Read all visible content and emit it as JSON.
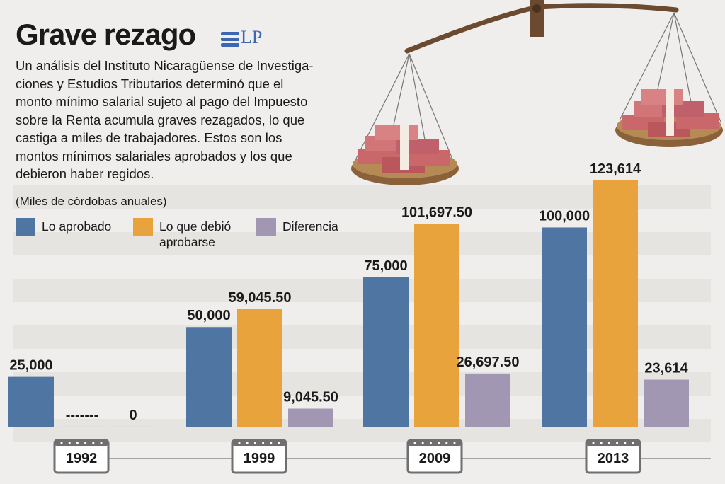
{
  "title": "Grave rezago",
  "logo": "LP",
  "description": "Un análisis del Instituto Nicaragüense de Investigaciones y Estudios Tributarios determinó que el monto mínimo salarial sujeto al pago del Impuesto sobre la Renta acumula graves rezagados, lo que castiga a miles de trabajadores. Estos son los montos mínimos salariales aprobados y los que debieron haber regidos.",
  "description_lines": [
    "Un análisis del Instituto Nicaragüense de Investiga-",
    "ciones y Estudios Tributarios determinó que el",
    "monto mínimo salarial sujeto al pago del Impuesto",
    "sobre la Renta acumula graves rezagados, lo que",
    "castiga a miles de trabajadores. Estos son los",
    "montos mínimos salariales aprobados y los que",
    "debieron haber regidos."
  ],
  "unit_label": "(Miles de córdobas anuales)",
  "legend": [
    {
      "label": "Lo aprobado",
      "color": "#4f76a3"
    },
    {
      "label": "Lo que debió aprobarse",
      "line1": "Lo que debió",
      "line2": "aprobarse",
      "color": "#e8a33c"
    },
    {
      "label": "Diferencia",
      "color": "#a297b3"
    }
  ],
  "chart_data": {
    "type": "bar",
    "title": "Grave rezago",
    "ylabel": "(Miles de córdobas anuales)",
    "categories": [
      "1992",
      "1999",
      "2009",
      "2013"
    ],
    "ylim": [
      0,
      130000
    ],
    "series": [
      {
        "name": "Lo aprobado",
        "color": "#4f76a3",
        "values": [
          25000,
          50000,
          75000,
          100000
        ],
        "labels": [
          "25,000",
          "50,000",
          "75,000",
          "100,000"
        ]
      },
      {
        "name": "Lo que debió aprobarse",
        "color": "#e8a33c",
        "values": [
          null,
          59045.5,
          101697.5,
          123614
        ],
        "labels": [
          "-------",
          "59,045.50",
          "101,697.50",
          "123,614"
        ]
      },
      {
        "name": "Diferencia",
        "color": "#a297b3",
        "values": [
          0,
          9045.5,
          26697.5,
          23614
        ],
        "labels": [
          "0",
          "9,045.50",
          "26,697.50",
          "23,614"
        ]
      }
    ]
  }
}
